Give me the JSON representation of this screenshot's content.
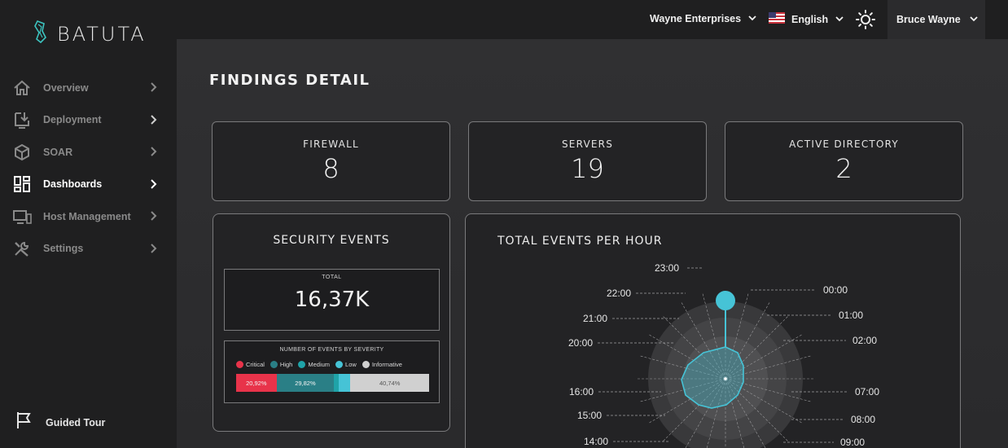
{
  "app": {
    "name": "BATUTA"
  },
  "topbar": {
    "organization": "Wayne Enterprises",
    "language": "English",
    "user": "Bruce Wayne"
  },
  "sidebar": {
    "items": [
      {
        "label": "Overview",
        "icon": "home-icon",
        "active": false
      },
      {
        "label": "Deployment",
        "icon": "download-icon",
        "active": false
      },
      {
        "label": "SOAR",
        "icon": "cube-icon",
        "active": false
      },
      {
        "label": "Dashboards",
        "icon": "dashboard-icon",
        "active": true
      },
      {
        "label": "Host Management",
        "icon": "monitor-icon",
        "active": false
      },
      {
        "label": "Settings",
        "icon": "tools-icon",
        "active": false
      }
    ],
    "guided_tour": "Guided Tour"
  },
  "page": {
    "title": "FINDINGS DETAIL"
  },
  "stats": [
    {
      "label": "FIREWALL",
      "value": "8"
    },
    {
      "label": "SERVERS",
      "value": "19"
    },
    {
      "label": "ACTIVE DIRECTORY",
      "value": "2"
    }
  ],
  "security_events": {
    "title": "SECURITY EVENTS",
    "total_label": "TOTAL",
    "total_value": "16,37K",
    "severity_title": "NUMBER OF EVENTS BY SEVERITY",
    "legend": [
      {
        "label": "Critical",
        "color": "#e8334a"
      },
      {
        "label": "High",
        "color": "#2a7f86"
      },
      {
        "label": "Medium",
        "color": "#1fa3a8"
      },
      {
        "label": "Low",
        "color": "#46c3d6"
      },
      {
        "label": "Informative",
        "color": "#d0d0d0"
      }
    ],
    "segments": [
      {
        "severity": "Critical",
        "percent": 20.92,
        "label": "20,92%",
        "color": "#e8334a"
      },
      {
        "severity": "High",
        "percent": 29.82,
        "label": "29,82%",
        "color": "#2a7f86"
      },
      {
        "severity": "Medium",
        "percent": 2.5,
        "label": "",
        "color": "#1fa3a8"
      },
      {
        "severity": "Low",
        "percent": 6.02,
        "label": "",
        "color": "#46c3d6"
      },
      {
        "severity": "Informative",
        "percent": 40.74,
        "label": "40,74%",
        "color": "#d0d0d0"
      }
    ]
  },
  "events_per_hour": {
    "title": "TOTAL EVENTS PER HOUR",
    "hours_visible": [
      "23:00",
      "00:00",
      "22:00",
      "01:00",
      "21:00",
      "02:00",
      "20:00",
      "16:00",
      "07:00",
      "15:00",
      "08:00",
      "14:00",
      "09:00"
    ],
    "accent_color": "#46c3d6"
  }
}
